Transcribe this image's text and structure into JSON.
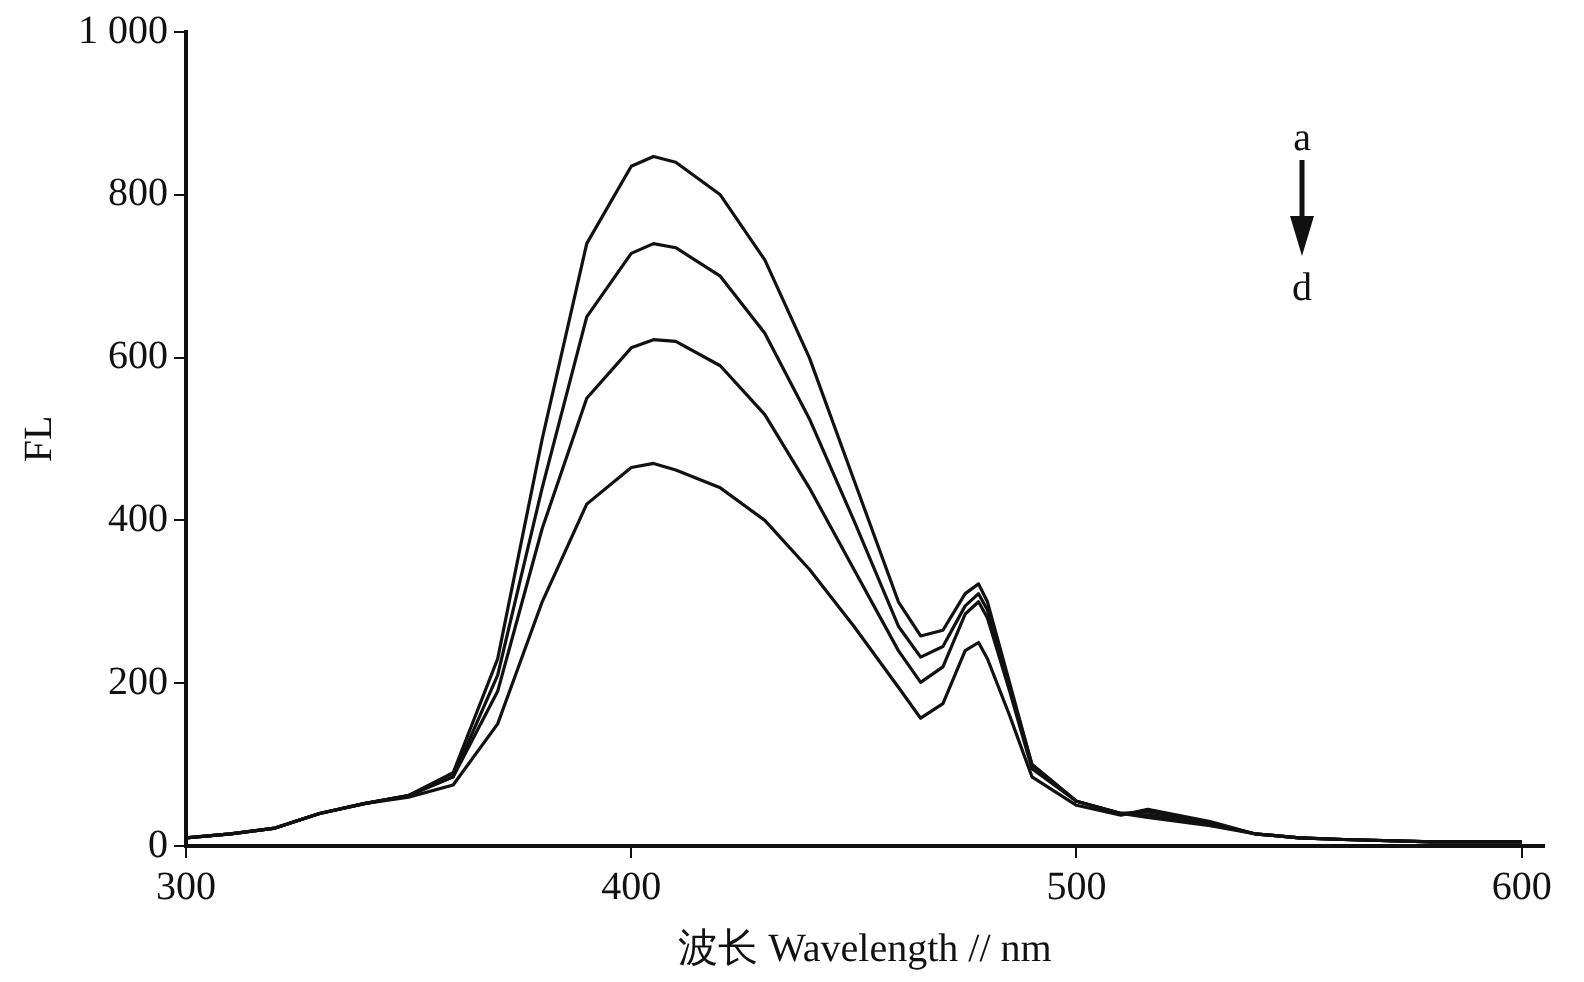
{
  "chart_data": {
    "type": "line",
    "xlabel": "波长 Wavelength // nm",
    "ylabel": "FL",
    "x": [
      300,
      310,
      320,
      330,
      340,
      350,
      360,
      370,
      380,
      390,
      400,
      405,
      410,
      420,
      430,
      440,
      450,
      460,
      465,
      470,
      475,
      478,
      480,
      485,
      490,
      500,
      510,
      516,
      530,
      540,
      550,
      560,
      580,
      600
    ],
    "series": [
      {
        "color": "#111111",
        "values": [
          10,
          15,
          22,
          40,
          52,
          62,
          90,
          230,
          500,
          740,
          835,
          847,
          840,
          800,
          720,
          600,
          450,
          300,
          258,
          265,
          310,
          322,
          300,
          200,
          100,
          55,
          40,
          35,
          25,
          15,
          10,
          8,
          5,
          5
        ]
      },
      {
        "color": "#111111",
        "values": [
          10,
          15,
          22,
          40,
          52,
          62,
          85,
          210,
          440,
          650,
          728,
          740,
          735,
          700,
          630,
          525,
          400,
          270,
          232,
          245,
          295,
          310,
          290,
          195,
          100,
          55,
          40,
          38,
          27,
          15,
          10,
          8,
          5,
          5
        ]
      },
      {
        "color": "#111111",
        "values": [
          10,
          15,
          22,
          40,
          52,
          62,
          85,
          190,
          390,
          550,
          612,
          622,
          620,
          590,
          530,
          440,
          340,
          240,
          201,
          220,
          285,
          300,
          280,
          190,
          95,
          55,
          40,
          42,
          28,
          15,
          10,
          8,
          5,
          5
        ]
      },
      {
        "color": "#111111",
        "values": [
          10,
          15,
          22,
          40,
          52,
          60,
          75,
          150,
          300,
          420,
          465,
          470,
          462,
          440,
          400,
          340,
          270,
          195,
          157,
          175,
          240,
          250,
          230,
          160,
          85,
          50,
          38,
          45,
          30,
          15,
          10,
          8,
          5,
          5
        ]
      }
    ],
    "xlim": [
      300,
      605
    ],
    "xticks": [
      300,
      400,
      500,
      600
    ],
    "ylim": [
      0,
      1000
    ],
    "yticks": [
      0,
      200,
      400,
      600,
      800,
      {
        "value": 1000,
        "label": "1 000"
      }
    ],
    "grid": false,
    "legend": false,
    "marker": "none",
    "line_style": "solid",
    "annotations": [
      "a",
      "d"
    ]
  }
}
